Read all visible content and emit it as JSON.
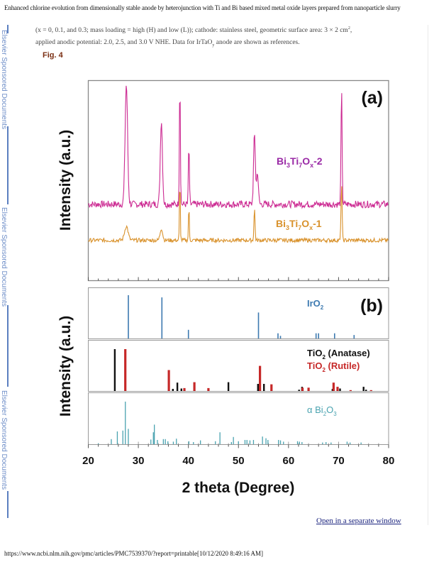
{
  "header": {
    "title": "Enhanced chlorine evolution from dimensionally stable anode by heterojunction with Ti and Bi based mixed metal oxide layers prepared from nanoparticle slurry"
  },
  "caption": {
    "line1_a": "(x = 0, 0.1, and 0.3; mass loading = high (H) and low (L)); cathode: stainless steel, geometric surface area: 3 × 2 cm",
    "line1_sup": "2",
    "line1_b": ",",
    "line2_a": "applied anodic potential: 2.0, 2.5, and 3.0 V NHE. Data for IrTaO",
    "line2_sub": "y",
    "line2_b": " anode are shown as references."
  },
  "figure_label": "Fig. 4",
  "sidebar": {
    "text": "Elsevier Sponsored Documents"
  },
  "link": {
    "open_window": "Open in a separate window"
  },
  "footer": {
    "url": "https://www.ncbi.nlm.nih.gov/pmc/articles/PMC7539370/?report=printable[10/12/2020 8:49:16 AM]"
  },
  "colors": {
    "bi3ti7ox_2_line": "#cc2a92",
    "bi3ti7ox_2_label": "#9a2aa6",
    "bi3ti7ox_1": "#d9922c",
    "iro2": "#3d7ab0",
    "anatase": "#111111",
    "rutile": "#c62828",
    "bi2o3": "#4aa3b0"
  },
  "chart_data": [
    {
      "type": "line",
      "panel": "(a)",
      "xlabel": "2 theta (Degree)",
      "ylabel": "Intensity (a.u.)",
      "xlim": [
        20,
        80
      ],
      "xticks": [
        20,
        30,
        40,
        50,
        60,
        70,
        80
      ],
      "xtick_labels": [
        "20",
        "30",
        "40",
        "50",
        "60",
        "70",
        "80"
      ],
      "grid": false,
      "series": [
        {
          "name": "Bi3Ti7Ox-2",
          "label_main": [
            "Bi",
            "3",
            "Ti",
            "7",
            "O",
            "x",
            "-2"
          ],
          "baseline": 0.38,
          "peaks": [
            {
              "x": 27.6,
              "h": 0.6,
              "w": 0.35
            },
            {
              "x": 34.6,
              "h": 0.42,
              "w": 0.3
            },
            {
              "x": 38.3,
              "h": 0.62,
              "w": 0.14
            },
            {
              "x": 40.1,
              "h": 0.3,
              "w": 0.14
            },
            {
              "x": 53.2,
              "h": 0.35,
              "w": 0.25
            },
            {
              "x": 53.8,
              "h": 0.16,
              "w": 0.25
            },
            {
              "x": 70.6,
              "h": 0.58,
              "w": 0.15
            }
          ]
        },
        {
          "name": "Bi3Ti7Ox-1",
          "label_main": [
            "Bi",
            "3",
            "Ti",
            "7",
            "O",
            "x",
            "-1"
          ],
          "baseline": 0.2,
          "peaks": [
            {
              "x": 27.6,
              "h": 0.07,
              "w": 0.5
            },
            {
              "x": 34.6,
              "h": 0.06,
              "w": 0.35
            },
            {
              "x": 38.3,
              "h": 0.3,
              "w": 0.12
            },
            {
              "x": 40.1,
              "h": 0.17,
              "w": 0.12
            },
            {
              "x": 53.2,
              "h": 0.16,
              "w": 0.15
            },
            {
              "x": 70.6,
              "h": 0.29,
              "w": 0.15
            }
          ]
        }
      ]
    },
    {
      "type": "bar",
      "panel": "(b)",
      "ylabel": "Intensity (a.u.)",
      "xlim": [
        20,
        80
      ],
      "references": [
        {
          "name": "IrO2",
          "label_main": [
            "IrO",
            "2"
          ],
          "x": [
            28.0,
            34.7,
            40.0,
            54.0,
            57.9,
            58.4,
            65.5,
            66.0,
            69.2,
            73.1
          ],
          "y": [
            100,
            95,
            20,
            60,
            12,
            6,
            12,
            12,
            12,
            8
          ]
        },
        {
          "name": "TiO2 (Anatase)",
          "label_main": [
            "TiO",
            "2",
            " (Anatase)"
          ],
          "x": [
            25.3,
            36.9,
            37.8,
            38.6,
            48.0,
            53.9,
            55.1,
            62.1,
            62.7,
            68.8,
            70.3,
            75.0,
            75.5
          ],
          "y": [
            100,
            5,
            20,
            6,
            21,
            17,
            17,
            3,
            10,
            5,
            6,
            10,
            3
          ]
        },
        {
          "name": "TiO2 (Rutile)",
          "label_main": [
            "TiO",
            "2",
            " (Rutile)"
          ],
          "x": [
            27.4,
            36.1,
            39.2,
            41.2,
            44.0,
            54.3,
            56.6,
            62.8,
            64.0,
            69.0,
            69.8,
            72.4,
            76.5
          ],
          "y": [
            100,
            50,
            7,
            21,
            7,
            60,
            16,
            8,
            8,
            20,
            10,
            2,
            2
          ]
        },
        {
          "name": "α Bi2O3",
          "label_main": [
            "α Bi",
            "2",
            "O",
            "3"
          ],
          "x": [
            22.0,
            24.6,
            25.8,
            26.9,
            27.4,
            28.0,
            32.5,
            33.0,
            33.2,
            33.8,
            35.0,
            35.4,
            35.9,
            37.0,
            37.6,
            40.1,
            41.0,
            42.4,
            45.4,
            46.3,
            48.6,
            49.0,
            50.0,
            51.3,
            51.7,
            52.3,
            53.0,
            54.8,
            55.5,
            55.9,
            58.0,
            58.4,
            59.0,
            61.8,
            62.2,
            62.7,
            66.8,
            67.5,
            68.5,
            71.7,
            72.3,
            74.5
          ],
          "y": [
            2,
            12,
            30,
            32,
            100,
            36,
            11,
            28,
            46,
            10,
            12,
            12,
            7,
            6,
            13,
            7,
            5,
            9,
            7,
            28,
            5,
            17,
            7,
            10,
            10,
            9,
            10,
            18,
            14,
            10,
            10,
            9,
            6,
            7,
            6,
            5,
            4,
            5,
            4,
            6,
            4,
            4
          ]
        }
      ],
      "xlabel": "2 theta (Degree)",
      "xticks": [
        20,
        30,
        40,
        50,
        60,
        70,
        80
      ],
      "xtick_labels": [
        "20",
        "30",
        "40",
        "50",
        "60",
        "70",
        "80"
      ]
    }
  ],
  "panel_labels": [
    "(a)",
    "(b)"
  ]
}
